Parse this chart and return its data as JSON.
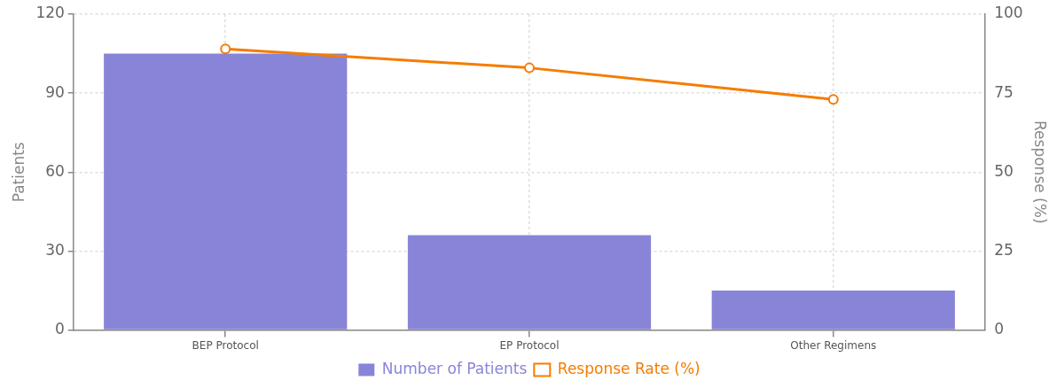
{
  "chart_data": {
    "type": "bar",
    "categories": [
      "BEP Protocol",
      "EP Protocol",
      "Other Regimens"
    ],
    "ylabel": "Patients",
    "y2label": "Response (%)",
    "series": [
      {
        "name": "Number of Patients",
        "color": "#8884d8",
        "values": [
          105,
          36,
          15
        ]
      },
      {
        "name": "Response Rate (%)",
        "type": "line",
        "axis": "y2",
        "color": "#f57c00",
        "values": [
          89,
          83,
          73
        ]
      }
    ],
    "ylim": [
      0,
      120
    ],
    "yticks": [
      0,
      30,
      60,
      90,
      120
    ],
    "y2lim": [
      0,
      100
    ],
    "y2ticks": [
      0,
      25,
      50,
      75,
      100
    ],
    "grid": true,
    "legend": "bottom",
    "marker": "circle",
    "line_style": "solid"
  }
}
